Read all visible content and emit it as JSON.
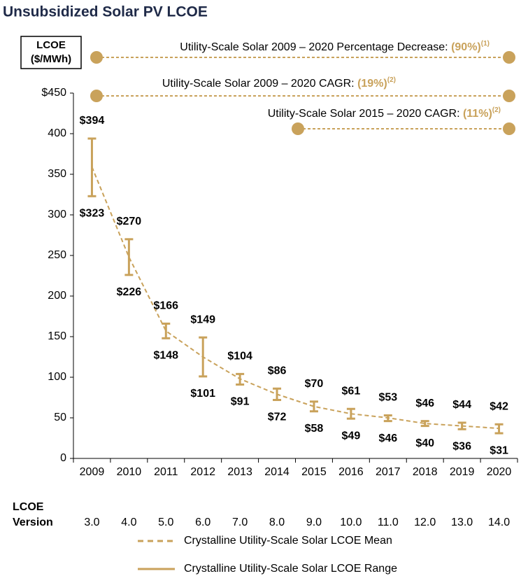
{
  "chart_data": {
    "type": "range_line",
    "title": "Unsubsidized Solar PV LCOE",
    "y_label": "LCOE ($/MWh)",
    "categories": [
      "2009",
      "2010",
      "2011",
      "2012",
      "2013",
      "2014",
      "2015",
      "2016",
      "2017",
      "2018",
      "2019",
      "2020"
    ],
    "row_label": "LCOE Version",
    "row_values": [
      "3.0",
      "4.0",
      "5.0",
      "6.0",
      "7.0",
      "8.0",
      "9.0",
      "10.0",
      "11.0",
      "12.0",
      "13.0",
      "14.0"
    ],
    "series": [
      {
        "name": "Crystalline Utility-Scale Solar LCOE Mean",
        "color": "#c9a25b",
        "style": "dashed",
        "values": [
          359,
          248,
          157,
          125,
          98,
          79,
          64,
          55,
          50,
          43,
          40,
          37
        ]
      },
      {
        "name": "Crystalline Utility-Scale Solar LCOE Range",
        "color": "#c9a25b",
        "style": "solid",
        "high": [
          394,
          270,
          166,
          149,
          104,
          86,
          70,
          61,
          53,
          46,
          44,
          42
        ],
        "high_labels": [
          "$394",
          "$270",
          "$166",
          "$149",
          "$104",
          "$86",
          "$70",
          "$61",
          "$53",
          "$46",
          "$44",
          "$42"
        ],
        "low": [
          323,
          226,
          148,
          101,
          91,
          72,
          58,
          49,
          46,
          40,
          36,
          31
        ],
        "low_labels": [
          "$323",
          "$226",
          "$148",
          "$101",
          "$91",
          "$72",
          "$58",
          "$49",
          "$46",
          "$40",
          "$36",
          "$31"
        ]
      }
    ],
    "ylim": [
      0,
      450
    ],
    "yticks": [
      0,
      50,
      100,
      150,
      200,
      250,
      300,
      350,
      400,
      {
        "value": 450,
        "label": "$450"
      }
    ],
    "annotations": [
      {
        "text": "Utility-Scale Solar 2009 – 2020 Percentage Decrease: ",
        "highlight": "(90%)",
        "note": "(1)"
      },
      {
        "text": "Utility-Scale Solar 2009 – 2020 CAGR: ",
        "highlight": "(19%)",
        "note": "(2)"
      },
      {
        "text": "Utility-Scale Solar 2015 – 2020 CAGR: ",
        "highlight": "(11%)",
        "note": "(2)"
      }
    ]
  }
}
